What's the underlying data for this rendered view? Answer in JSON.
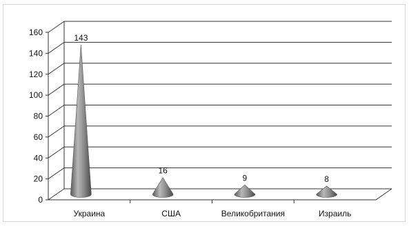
{
  "chart_data": {
    "type": "bar",
    "style": "3d-cone",
    "categories": [
      "Украина",
      "США",
      "Великобритания",
      "Израиль"
    ],
    "values": [
      143,
      16,
      9,
      8
    ],
    "data_labels": [
      "143",
      "16",
      "9",
      "8"
    ],
    "ylim": [
      0,
      160
    ],
    "yticks": [
      0,
      20,
      40,
      60,
      80,
      100,
      120,
      140,
      160
    ],
    "ytick_labels": [
      "0",
      "20",
      "40",
      "60",
      "80",
      "100",
      "120",
      "140",
      "160"
    ],
    "grid": true,
    "legend": "none",
    "colors": {
      "cone": "#7a7a7a",
      "grid": "#333333",
      "frame": "#d9d9d9"
    }
  }
}
